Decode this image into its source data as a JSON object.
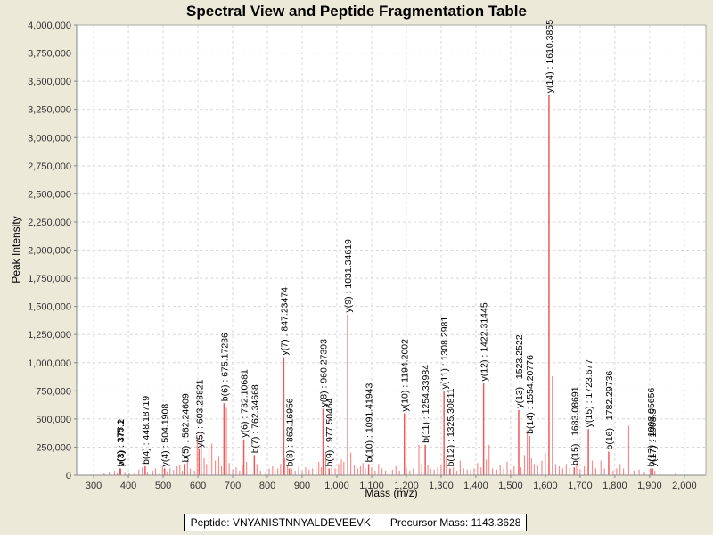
{
  "chart_data": {
    "type": "bar",
    "title": "Spectral View and Peptide Fragmentation Table",
    "xlabel": "Mass (m/z)",
    "ylabel": "Peak Intensity",
    "xlim": [
      251,
      2062
    ],
    "ylim": [
      0,
      4000000
    ],
    "grid": true,
    "x_ticks": [
      "300",
      "400",
      "500",
      "600",
      "700",
      "800",
      "900",
      "1,000",
      "1,100",
      "1,200",
      "1,300",
      "1,400",
      "1,500",
      "1,600",
      "1,700",
      "1,800",
      "1,900",
      "2,000"
    ],
    "x_tick_values": [
      300,
      400,
      500,
      600,
      700,
      800,
      900,
      1000,
      1100,
      1200,
      1300,
      1400,
      1500,
      1600,
      1700,
      1800,
      1900,
      2000
    ],
    "y_ticks": [
      "0",
      "250,000",
      "500,000",
      "750,000",
      "1,000,000",
      "1,250,000",
      "1,500,000",
      "1,750,000",
      "2,000,000",
      "2,250,000",
      "2,500,000",
      "2,750,000",
      "3,000,000",
      "3,250,000",
      "3,500,000",
      "3,750,000",
      "4,000,000"
    ],
    "y_tick_values": [
      0,
      250000,
      500000,
      750000,
      1000000,
      1250000,
      1500000,
      1750000,
      2000000,
      2250000,
      2500000,
      2750000,
      3000000,
      3250000,
      3500000,
      3750000,
      4000000
    ],
    "bar_color": "#f05a5a",
    "annotated_peaks": [
      {
        "label": "y(3) : 375.1",
        "mz": 375.1,
        "intensity": 60000
      },
      {
        "label": "b(3) : 377.2",
        "mz": 377.2,
        "intensity": 60000
      },
      {
        "label": "b(4) : 448.18719",
        "mz": 448.18719,
        "intensity": 80000
      },
      {
        "label": "y(4) : 504.1908",
        "mz": 504.1908,
        "intensity": 60000
      },
      {
        "label": "b(5) : 562.24609",
        "mz": 562.24609,
        "intensity": 100000
      },
      {
        "label": "y(5) : 603.28821",
        "mz": 603.28821,
        "intensity": 230000
      },
      {
        "label": "b(6) : 675.17236",
        "mz": 675.17236,
        "intensity": 640000
      },
      {
        "label": "y(6) : 732.10681",
        "mz": 732.10681,
        "intensity": 320000
      },
      {
        "label": "b(7) : 762.34668",
        "mz": 762.34668,
        "intensity": 180000
      },
      {
        "label": "y(7) : 847.23474",
        "mz": 847.23474,
        "intensity": 1050000
      },
      {
        "label": "b(8) : 863.16956",
        "mz": 863.16956,
        "intensity": 60000
      },
      {
        "label": "y(8) : 960.27393",
        "mz": 960.27393,
        "intensity": 590000
      },
      {
        "label": "b(9) : 977.50464",
        "mz": 977.50464,
        "intensity": 60000
      },
      {
        "label": "y(9) : 1031.34619",
        "mz": 1031.34619,
        "intensity": 1430000
      },
      {
        "label": "b(10) : 1091.41943",
        "mz": 1091.41943,
        "intensity": 100000
      },
      {
        "label": "y(10) : 1194.2002",
        "mz": 1194.2002,
        "intensity": 550000
      },
      {
        "label": "b(11) : 1254.33984",
        "mz": 1254.33984,
        "intensity": 270000
      },
      {
        "label": "y(11) : 1308.2981",
        "mz": 1308.2981,
        "intensity": 750000
      },
      {
        "label": "b(12) : 1325.30811",
        "mz": 1325.30811,
        "intensity": 60000
      },
      {
        "label": "y(12) : 1422.31445",
        "mz": 1422.31445,
        "intensity": 820000
      },
      {
        "label": "y(13) : 1523.2522",
        "mz": 1523.2522,
        "intensity": 580000
      },
      {
        "label": "b(14) : 1554.20776",
        "mz": 1554.20776,
        "intensity": 350000
      },
      {
        "label": "y(14) : 1610.3855",
        "mz": 1610.3855,
        "intensity": 3380000
      },
      {
        "label": "b(15) : 1683.08691",
        "mz": 1683.08691,
        "intensity": 70000
      },
      {
        "label": "y(15) : 1723.677",
        "mz": 1723.677,
        "intensity": 410000
      },
      {
        "label": "b(16) : 1782.29736",
        "mz": 1782.29736,
        "intensity": 210000
      },
      {
        "label": "y(17) : 1908.5",
        "mz": 1908.5,
        "intensity": 60000
      },
      {
        "label": "b(17) : 1903.05656",
        "mz": 1903.05656,
        "intensity": 60000
      }
    ],
    "other_peaks": [
      [
        330,
        20000
      ],
      [
        345,
        30000
      ],
      [
        360,
        40000
      ],
      [
        368,
        25000
      ],
      [
        390,
        30000
      ],
      [
        402,
        20000
      ],
      [
        418,
        25000
      ],
      [
        430,
        50000
      ],
      [
        440,
        70000
      ],
      [
        455,
        30000
      ],
      [
        470,
        40000
      ],
      [
        478,
        60000
      ],
      [
        490,
        20000
      ],
      [
        498,
        80000
      ],
      [
        512,
        35000
      ],
      [
        520,
        60000
      ],
      [
        530,
        45000
      ],
      [
        540,
        80000
      ],
      [
        548,
        90000
      ],
      [
        555,
        40000
      ],
      [
        570,
        130000
      ],
      [
        578,
        60000
      ],
      [
        590,
        40000
      ],
      [
        598,
        300000
      ],
      [
        610,
        390000
      ],
      [
        618,
        150000
      ],
      [
        625,
        100000
      ],
      [
        632,
        230000
      ],
      [
        640,
        280000
      ],
      [
        650,
        130000
      ],
      [
        660,
        170000
      ],
      [
        668,
        80000
      ],
      [
        682,
        600000
      ],
      [
        690,
        110000
      ],
      [
        700,
        50000
      ],
      [
        710,
        70000
      ],
      [
        720,
        40000
      ],
      [
        728,
        90000
      ],
      [
        740,
        120000
      ],
      [
        750,
        60000
      ],
      [
        770,
        100000
      ],
      [
        780,
        40000
      ],
      [
        795,
        30000
      ],
      [
        805,
        60000
      ],
      [
        815,
        80000
      ],
      [
        822,
        40000
      ],
      [
        830,
        60000
      ],
      [
        838,
        100000
      ],
      [
        850,
        150000
      ],
      [
        858,
        80000
      ],
      [
        870,
        60000
      ],
      [
        880,
        40000
      ],
      [
        890,
        80000
      ],
      [
        900,
        40000
      ],
      [
        910,
        70000
      ],
      [
        920,
        50000
      ],
      [
        930,
        60000
      ],
      [
        940,
        90000
      ],
      [
        948,
        120000
      ],
      [
        955,
        70000
      ],
      [
        968,
        200000
      ],
      [
        985,
        80000
      ],
      [
        995,
        60000
      ],
      [
        1005,
        100000
      ],
      [
        1013,
        140000
      ],
      [
        1020,
        120000
      ],
      [
        1040,
        200000
      ],
      [
        1050,
        90000
      ],
      [
        1060,
        60000
      ],
      [
        1068,
        80000
      ],
      [
        1075,
        110000
      ],
      [
        1082,
        60000
      ],
      [
        1100,
        70000
      ],
      [
        1110,
        40000
      ],
      [
        1120,
        100000
      ],
      [
        1130,
        60000
      ],
      [
        1140,
        40000
      ],
      [
        1150,
        30000
      ],
      [
        1160,
        50000
      ],
      [
        1170,
        80000
      ],
      [
        1180,
        40000
      ],
      [
        1200,
        70000
      ],
      [
        1210,
        40000
      ],
      [
        1220,
        60000
      ],
      [
        1236,
        270000
      ],
      [
        1244,
        100000
      ],
      [
        1262,
        90000
      ],
      [
        1270,
        60000
      ],
      [
        1280,
        50000
      ],
      [
        1290,
        70000
      ],
      [
        1300,
        90000
      ],
      [
        1315,
        160000
      ],
      [
        1335,
        70000
      ],
      [
        1345,
        40000
      ],
      [
        1355,
        130000
      ],
      [
        1365,
        60000
      ],
      [
        1375,
        50000
      ],
      [
        1385,
        50000
      ],
      [
        1395,
        60000
      ],
      [
        1405,
        110000
      ],
      [
        1415,
        70000
      ],
      [
        1430,
        140000
      ],
      [
        1438,
        270000
      ],
      [
        1448,
        60000
      ],
      [
        1460,
        50000
      ],
      [
        1470,
        90000
      ],
      [
        1480,
        60000
      ],
      [
        1490,
        120000
      ],
      [
        1500,
        50000
      ],
      [
        1510,
        80000
      ],
      [
        1530,
        70000
      ],
      [
        1540,
        180000
      ],
      [
        1548,
        400000
      ],
      [
        1560,
        150000
      ],
      [
        1568,
        100000
      ],
      [
        1578,
        90000
      ],
      [
        1590,
        130000
      ],
      [
        1600,
        200000
      ],
      [
        1620,
        880000
      ],
      [
        1630,
        100000
      ],
      [
        1640,
        80000
      ],
      [
        1650,
        60000
      ],
      [
        1660,
        100000
      ],
      [
        1670,
        60000
      ],
      [
        1690,
        110000
      ],
      [
        1700,
        50000
      ],
      [
        1712,
        80000
      ],
      [
        1735,
        130000
      ],
      [
        1745,
        60000
      ],
      [
        1760,
        130000
      ],
      [
        1770,
        60000
      ],
      [
        1795,
        40000
      ],
      [
        1805,
        60000
      ],
      [
        1815,
        100000
      ],
      [
        1825,
        60000
      ],
      [
        1840,
        440000
      ],
      [
        1855,
        40000
      ],
      [
        1870,
        50000
      ],
      [
        1885,
        30000
      ],
      [
        1915,
        40000
      ],
      [
        1930,
        30000
      ],
      [
        1975,
        20000
      ]
    ]
  },
  "footer": {
    "peptide": "Peptide: VNYANISTNNYALDEVEEVK",
    "precursor": "Precursor Mass: 1143.3628"
  }
}
